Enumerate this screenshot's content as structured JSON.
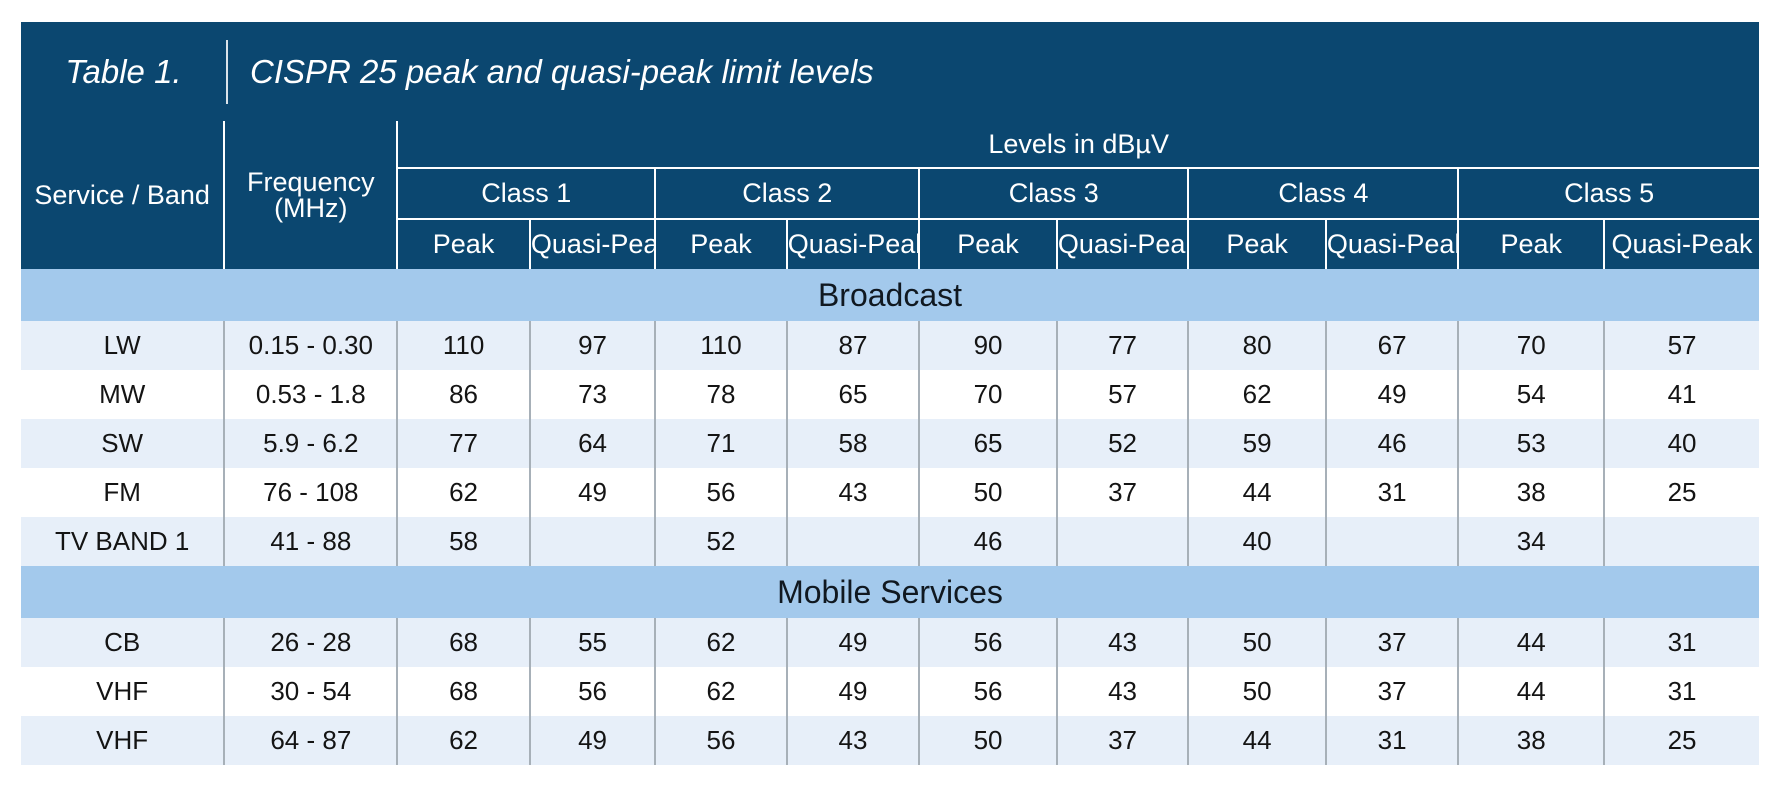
{
  "title": {
    "label": "Table 1.",
    "text": "CISPR 25 peak and quasi-peak limit levels"
  },
  "headers": {
    "service": "Service / Band",
    "frequency_line1": "Frequency",
    "frequency_line2": "(MHz)",
    "levels": "Levels in dBµV",
    "classes": [
      "Class 1",
      "Class 2",
      "Class 3",
      "Class 4",
      "Class 5"
    ],
    "peak": "Peak",
    "quasi_peak": "Quasi-Peak"
  },
  "sections": [
    {
      "name": "Broadcast",
      "rows": [
        {
          "service": "LW",
          "frequency": "0.15 - 0.30",
          "values": [
            "110",
            "97",
            "110",
            "87",
            "90",
            "77",
            "80",
            "67",
            "70",
            "57"
          ]
        },
        {
          "service": "MW",
          "frequency": "0.53 - 1.8",
          "values": [
            "86",
            "73",
            "78",
            "65",
            "70",
            "57",
            "62",
            "49",
            "54",
            "41"
          ]
        },
        {
          "service": "SW",
          "frequency": "5.9 - 6.2",
          "values": [
            "77",
            "64",
            "71",
            "58",
            "65",
            "52",
            "59",
            "46",
            "53",
            "40"
          ]
        },
        {
          "service": "FM",
          "frequency": "76 - 108",
          "values": [
            "62",
            "49",
            "56",
            "43",
            "50",
            "37",
            "44",
            "31",
            "38",
            "25"
          ]
        },
        {
          "service": "TV BAND 1",
          "frequency": "41 - 88",
          "values": [
            "58",
            "",
            "52",
            "",
            "46",
            "",
            "40",
            "",
            "34",
            ""
          ]
        }
      ]
    },
    {
      "name": "Mobile Services",
      "rows": [
        {
          "service": "CB",
          "frequency": "26 - 28",
          "values": [
            "68",
            "55",
            "62",
            "49",
            "56",
            "43",
            "50",
            "37",
            "44",
            "31"
          ]
        },
        {
          "service": "VHF",
          "frequency": "30 - 54",
          "values": [
            "68",
            "56",
            "62",
            "49",
            "56",
            "43",
            "50",
            "37",
            "44",
            "31"
          ]
        },
        {
          "service": "VHF",
          "frequency": "64 - 87",
          "values": [
            "62",
            "49",
            "56",
            "43",
            "50",
            "37",
            "44",
            "31",
            "38",
            "25"
          ]
        }
      ]
    }
  ]
}
